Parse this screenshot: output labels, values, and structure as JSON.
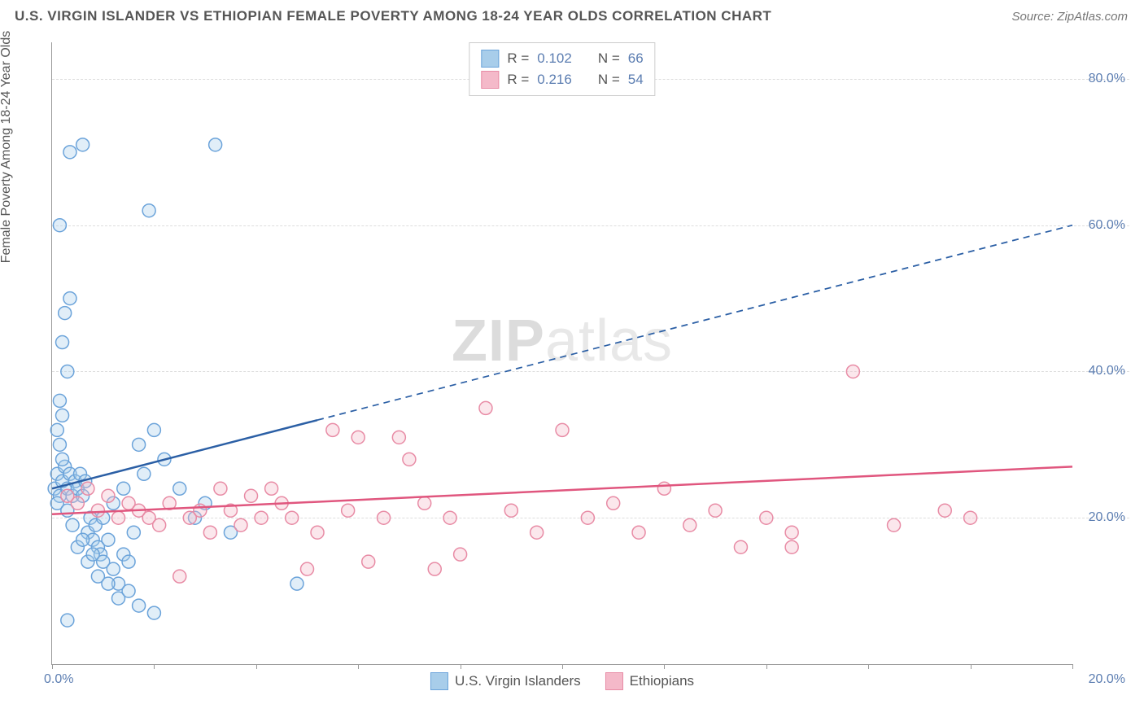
{
  "header": {
    "title": "U.S. VIRGIN ISLANDER VS ETHIOPIAN FEMALE POVERTY AMONG 18-24 YEAR OLDS CORRELATION CHART",
    "source": "Source: ZipAtlas.com"
  },
  "y_axis_label": "Female Poverty Among 18-24 Year Olds",
  "watermark": {
    "bold": "ZIP",
    "rest": "atlas"
  },
  "chart": {
    "type": "scatter",
    "xlim": [
      0,
      20
    ],
    "ylim": [
      0,
      85
    ],
    "x_ticks": [
      0,
      20
    ],
    "x_tick_labels": [
      "0.0%",
      "20.0%"
    ],
    "y_ticks": [
      20,
      40,
      60,
      80
    ],
    "y_tick_labels": [
      "20.0%",
      "40.0%",
      "60.0%",
      "80.0%"
    ],
    "x_minor_tick_step": 2,
    "background_color": "#ffffff",
    "grid_color": "#dddddd",
    "axis_color": "#999999",
    "marker_radius": 8,
    "marker_stroke_width": 1.5,
    "marker_fill_opacity": 0.35,
    "series": [
      {
        "name": "U.S. Virgin Islanders",
        "color_stroke": "#6ba3da",
        "color_fill": "#a8cdea",
        "r_value": "0.102",
        "n_value": "66",
        "trend": {
          "x1": 0,
          "y1": 24,
          "x2": 20,
          "y2": 60,
          "solid_until_x": 5.2,
          "stroke": "#2b5fa5",
          "width": 2.5
        },
        "points": [
          [
            0.05,
            24
          ],
          [
            0.1,
            26
          ],
          [
            0.15,
            23
          ],
          [
            0.2,
            25
          ],
          [
            0.1,
            22
          ],
          [
            0.25,
            27
          ],
          [
            0.3,
            24
          ],
          [
            0.35,
            26
          ],
          [
            0.15,
            30
          ],
          [
            0.2,
            28
          ],
          [
            0.4,
            23
          ],
          [
            0.45,
            25
          ],
          [
            0.3,
            21
          ],
          [
            0.5,
            24
          ],
          [
            0.1,
            32
          ],
          [
            0.55,
            26
          ],
          [
            0.2,
            34
          ],
          [
            0.6,
            23
          ],
          [
            0.65,
            25
          ],
          [
            0.15,
            36
          ],
          [
            0.7,
            18
          ],
          [
            0.75,
            20
          ],
          [
            0.3,
            40
          ],
          [
            0.8,
            17
          ],
          [
            0.85,
            19
          ],
          [
            0.2,
            44
          ],
          [
            0.9,
            16
          ],
          [
            0.95,
            15
          ],
          [
            0.25,
            48
          ],
          [
            1.0,
            14
          ],
          [
            1.1,
            17
          ],
          [
            1.2,
            13
          ],
          [
            0.35,
            50
          ],
          [
            1.3,
            11
          ],
          [
            1.4,
            15
          ],
          [
            0.15,
            60
          ],
          [
            1.5,
            14
          ],
          [
            1.6,
            18
          ],
          [
            0.35,
            70
          ],
          [
            1.7,
            30
          ],
          [
            1.8,
            26
          ],
          [
            0.6,
            71
          ],
          [
            2.0,
            32
          ],
          [
            2.2,
            28
          ],
          [
            3.2,
            71
          ],
          [
            2.5,
            24
          ],
          [
            2.8,
            20
          ],
          [
            1.9,
            62
          ],
          [
            3.0,
            22
          ],
          [
            3.5,
            18
          ],
          [
            0.5,
            16
          ],
          [
            0.7,
            14
          ],
          [
            0.9,
            12
          ],
          [
            1.1,
            11
          ],
          [
            1.3,
            9
          ],
          [
            1.5,
            10
          ],
          [
            1.7,
            8
          ],
          [
            2.0,
            7
          ],
          [
            0.3,
            6
          ],
          [
            1.0,
            20
          ],
          [
            1.2,
            22
          ],
          [
            1.4,
            24
          ],
          [
            4.8,
            11
          ],
          [
            0.4,
            19
          ],
          [
            0.6,
            17
          ],
          [
            0.8,
            15
          ]
        ]
      },
      {
        "name": "Ethiopians",
        "color_stroke": "#e88ba5",
        "color_fill": "#f4b9c9",
        "r_value": "0.216",
        "n_value": "54",
        "trend": {
          "x1": 0,
          "y1": 20.5,
          "x2": 20,
          "y2": 27,
          "solid_until_x": 20,
          "stroke": "#e0567e",
          "width": 2.5
        },
        "points": [
          [
            0.3,
            23
          ],
          [
            0.5,
            22
          ],
          [
            0.7,
            24
          ],
          [
            0.9,
            21
          ],
          [
            1.1,
            23
          ],
          [
            1.3,
            20
          ],
          [
            1.5,
            22
          ],
          [
            1.7,
            21
          ],
          [
            1.9,
            20
          ],
          [
            2.1,
            19
          ],
          [
            2.3,
            22
          ],
          [
            2.5,
            12
          ],
          [
            2.7,
            20
          ],
          [
            2.9,
            21
          ],
          [
            3.1,
            18
          ],
          [
            3.3,
            24
          ],
          [
            3.5,
            21
          ],
          [
            3.7,
            19
          ],
          [
            3.9,
            23
          ],
          [
            4.1,
            20
          ],
          [
            4.3,
            24
          ],
          [
            4.5,
            22
          ],
          [
            4.7,
            20
          ],
          [
            5.0,
            13
          ],
          [
            5.2,
            18
          ],
          [
            5.5,
            32
          ],
          [
            5.8,
            21
          ],
          [
            6.0,
            31
          ],
          [
            6.2,
            14
          ],
          [
            6.5,
            20
          ],
          [
            6.8,
            31
          ],
          [
            7.0,
            28
          ],
          [
            7.3,
            22
          ],
          [
            7.5,
            13
          ],
          [
            7.8,
            20
          ],
          [
            8.0,
            15
          ],
          [
            8.5,
            35
          ],
          [
            9.0,
            21
          ],
          [
            9.5,
            18
          ],
          [
            10.0,
            32
          ],
          [
            10.5,
            20
          ],
          [
            11.0,
            22
          ],
          [
            11.5,
            18
          ],
          [
            12.0,
            24
          ],
          [
            12.5,
            19
          ],
          [
            13.0,
            21
          ],
          [
            13.5,
            16
          ],
          [
            14.0,
            20
          ],
          [
            14.5,
            18
          ],
          [
            15.7,
            40
          ],
          [
            16.5,
            19
          ],
          [
            17.5,
            21
          ],
          [
            18.0,
            20
          ],
          [
            14.5,
            16
          ]
        ]
      }
    ]
  },
  "legend_top": {
    "r_label": "R =",
    "n_label": "N ="
  },
  "legend_bottom": {
    "items": [
      "U.S. Virgin Islanders",
      "Ethiopians"
    ]
  }
}
